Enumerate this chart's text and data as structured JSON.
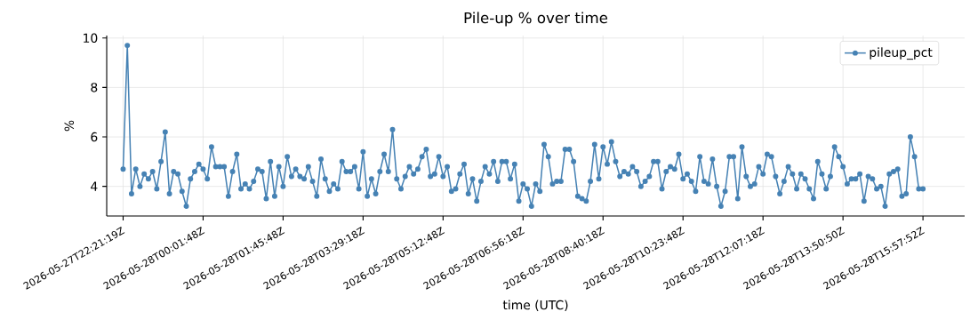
{
  "chart_data": {
    "type": "line",
    "title": "Pile-up % over time",
    "xlabel": "time (UTC)",
    "ylabel": "%",
    "categories": [
      "2026-05-27T22:21:19Z",
      null,
      null,
      null,
      null,
      null,
      null,
      null,
      null,
      null,
      null,
      null,
      null,
      null,
      null,
      null,
      null,
      null,
      null,
      "2026-05-28T00:01:48Z",
      null,
      null,
      null,
      null,
      null,
      null,
      null,
      null,
      null,
      null,
      null,
      null,
      null,
      null,
      null,
      null,
      null,
      null,
      "2026-05-28T01:45:48Z",
      null,
      null,
      null,
      null,
      null,
      null,
      null,
      null,
      null,
      null,
      null,
      null,
      null,
      null,
      null,
      null,
      null,
      null,
      "2026-05-28T03:29:18Z",
      null,
      null,
      null,
      null,
      null,
      null,
      null,
      null,
      null,
      null,
      null,
      null,
      null,
      null,
      null,
      null,
      null,
      null,
      "2026-05-28T05:12:48Z",
      null,
      null,
      null,
      null,
      null,
      null,
      null,
      null,
      null,
      null,
      null,
      null,
      null,
      null,
      null,
      null,
      null,
      null,
      "2026-05-28T06:56:18Z",
      null,
      null,
      null,
      null,
      null,
      null,
      null,
      null,
      null,
      null,
      null,
      null,
      null,
      null,
      null,
      null,
      null,
      null,
      "2026-05-28T08:40:18Z",
      null,
      null,
      null,
      null,
      null,
      null,
      null,
      null,
      null,
      null,
      null,
      null,
      null,
      null,
      null,
      null,
      null,
      null,
      "2026-05-28T10:23:48Z",
      null,
      null,
      null,
      null,
      null,
      null,
      null,
      null,
      null,
      null,
      null,
      null,
      null,
      null,
      null,
      null,
      null,
      null,
      "2026-05-28T12:07:18Z",
      null,
      null,
      null,
      null,
      null,
      null,
      null,
      null,
      null,
      null,
      null,
      null,
      null,
      null,
      null,
      null,
      null,
      null,
      "2026-05-28T13:50:50Z",
      null,
      null,
      null,
      null,
      null,
      null,
      null,
      null,
      null,
      null,
      null,
      null,
      null,
      null,
      null,
      null,
      null,
      null,
      "2026-05-28T15:57:52Z"
    ],
    "series": [
      {
        "name": "pileup_pct",
        "color": "#4682b4",
        "values": [
          4.7,
          9.7,
          3.7,
          4.7,
          4.0,
          4.5,
          4.3,
          4.6,
          3.9,
          5.0,
          6.2,
          3.7,
          4.6,
          4.5,
          3.8,
          3.2,
          4.3,
          4.6,
          4.9,
          4.7,
          4.3,
          5.6,
          4.8,
          4.8,
          4.8,
          3.6,
          4.6,
          5.3,
          3.9,
          4.1,
          3.9,
          4.2,
          4.7,
          4.6,
          3.5,
          5.0,
          3.6,
          4.8,
          4.0,
          5.2,
          4.4,
          4.7,
          4.4,
          4.3,
          4.8,
          4.2,
          3.6,
          5.1,
          4.3,
          3.8,
          4.1,
          3.9,
          5.0,
          4.6,
          4.6,
          4.8,
          3.9,
          5.4,
          3.6,
          4.3,
          3.7,
          4.6,
          5.3,
          4.6,
          6.3,
          4.3,
          3.9,
          4.4,
          4.8,
          4.5,
          4.7,
          5.2,
          5.5,
          4.4,
          4.5,
          5.2,
          4.4,
          4.8,
          3.8,
          3.9,
          4.5,
          4.9,
          3.7,
          4.3,
          3.4,
          4.2,
          4.8,
          4.5,
          5.0,
          4.2,
          5.0,
          5.0,
          4.3,
          4.9,
          3.4,
          4.1,
          3.9,
          3.2,
          4.1,
          3.8,
          5.7,
          5.2,
          4.1,
          4.2,
          4.2,
          5.5,
          5.5,
          5.0,
          3.6,
          3.5,
          3.4,
          4.2,
          5.7,
          4.3,
          5.6,
          4.9,
          5.8,
          5.0,
          4.4,
          4.6,
          4.5,
          4.8,
          4.6,
          4.0,
          4.2,
          4.4,
          5.0,
          5.0,
          3.9,
          4.6,
          4.8,
          4.7,
          5.3,
          4.3,
          4.5,
          4.2,
          3.8,
          5.2,
          4.2,
          4.1,
          5.1,
          4.0,
          3.2,
          3.8,
          5.2,
          5.2,
          3.5,
          5.6,
          4.4,
          4.0,
          4.1,
          4.8,
          4.5,
          5.3,
          5.2,
          4.4,
          3.7,
          4.2,
          4.8,
          4.5,
          3.9,
          4.5,
          4.3,
          3.9,
          3.5,
          5.0,
          4.5,
          3.9,
          4.4,
          5.6,
          5.2,
          4.8,
          4.1,
          4.3,
          4.3,
          4.5,
          3.4,
          4.4,
          4.3,
          3.9,
          4.0,
          3.2,
          4.5,
          4.6,
          4.7,
          3.6,
          3.7,
          6.0,
          5.2,
          3.9,
          3.9
        ]
      }
    ],
    "ylim": [
      2.8,
      10.1
    ],
    "yticks": [
      4,
      6,
      8,
      10
    ],
    "grid": true,
    "legend": "top right",
    "marker": "circle"
  }
}
